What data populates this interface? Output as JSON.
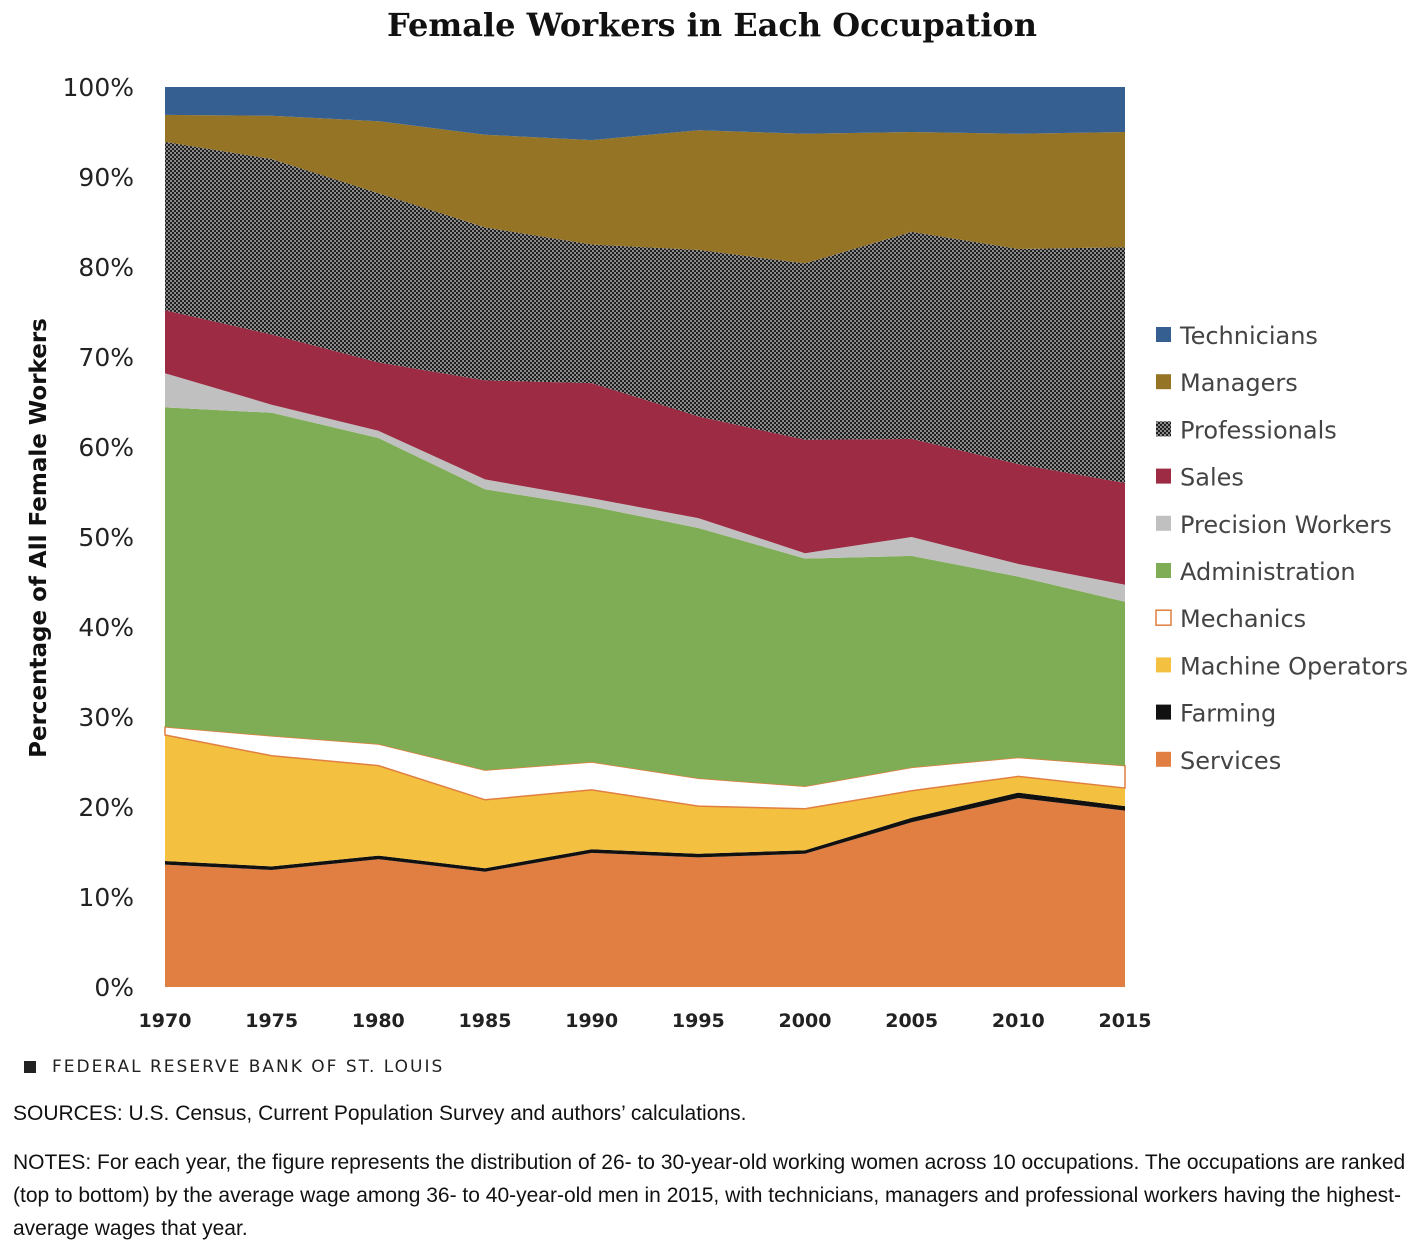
{
  "title": "Female Workers in Each Occupation",
  "branding": "FEDERAL RESERVE BANK OF ST. LOUIS",
  "sources": "SOURCES: U.S. Census, Current Population Survey and authors’ calculations.",
  "notes": "NOTES: For each year, the figure represents the distribution of 26- to 30-year-old working women across 10 occupations. The occupations are ranked (top to bottom) by the average wage among 36- to 40-year-old men in 2015, with technicians, managers and professional workers having the highest-average wages that year.",
  "chart_data": {
    "type": "area",
    "stacked": true,
    "ylabel": "Percentage of All Female Workers",
    "xlabel": "",
    "x": [
      1970,
      1975,
      1980,
      1985,
      1990,
      1995,
      2000,
      2005,
      2010,
      2015
    ],
    "x_tick_labels": [
      "1970",
      "1975",
      "1980",
      "1985",
      "1990",
      "1995",
      "2000",
      "2005",
      "2010",
      "2015"
    ],
    "ylim": [
      0,
      100
    ],
    "y_tick_labels": [
      "0%",
      "10%",
      "20%",
      "30%",
      "40%",
      "50%",
      "60%",
      "70%",
      "80%",
      "90%",
      "100%"
    ],
    "legend_position": "right",
    "series": [
      {
        "name": "Services",
        "color": "#e07f41",
        "values": [
          13.6,
          13.0,
          14.2,
          12.8,
          14.9,
          14.4,
          14.8,
          18.3,
          21.0,
          19.6
        ]
      },
      {
        "name": "Farming",
        "color": "#111111",
        "values": [
          0.4,
          0.4,
          0.4,
          0.4,
          0.4,
          0.4,
          0.4,
          0.5,
          0.6,
          0.5
        ]
      },
      {
        "name": "Machine Operators",
        "color": "#f3c13f",
        "values": [
          14.0,
          12.3,
          10.0,
          7.6,
          6.6,
          5.3,
          4.6,
          3.0,
          1.8,
          2.0
        ]
      },
      {
        "name": "Mechanics",
        "color": "#ffffff",
        "values": [
          0.9,
          2.2,
          2.4,
          3.3,
          3.1,
          3.1,
          2.5,
          2.6,
          2.1,
          2.5
        ]
      },
      {
        "name": "Administration",
        "color": "#7ead55",
        "values": [
          35.5,
          35.9,
          34.0,
          31.2,
          28.4,
          27.8,
          25.3,
          23.5,
          20.1,
          18.2
        ]
      },
      {
        "name": "Precision Workers",
        "color": "#c0c0c0",
        "values": [
          3.8,
          0.9,
          0.8,
          1.1,
          0.9,
          1.1,
          0.6,
          2.1,
          1.4,
          1.9
        ]
      },
      {
        "name": "Sales",
        "color": "#9d2b44",
        "values": [
          7.0,
          7.8,
          7.6,
          11.0,
          12.8,
          11.3,
          12.6,
          10.9,
          11.1,
          11.3
        ]
      },
      {
        "name": "Professionals",
        "color": "#474747",
        "values": [
          18.7,
          19.5,
          18.8,
          17.0,
          15.4,
          18.5,
          19.6,
          23.0,
          23.9,
          26.2
        ]
      },
      {
        "name": "Managers",
        "color": "#957426",
        "values": [
          3.0,
          4.8,
          8.0,
          10.3,
          11.6,
          13.3,
          14.4,
          11.1,
          12.8,
          12.8
        ]
      },
      {
        "name": "Technicians",
        "color": "#355f90",
        "values": [
          3.1,
          3.2,
          3.8,
          5.3,
          5.9,
          4.8,
          5.2,
          5.0,
          5.2,
          5.0
        ]
      }
    ],
    "legend_order": [
      "Technicians",
      "Managers",
      "Professionals",
      "Sales",
      "Precision Workers",
      "Administration",
      "Mechanics",
      "Machine Operators",
      "Farming",
      "Services"
    ]
  }
}
